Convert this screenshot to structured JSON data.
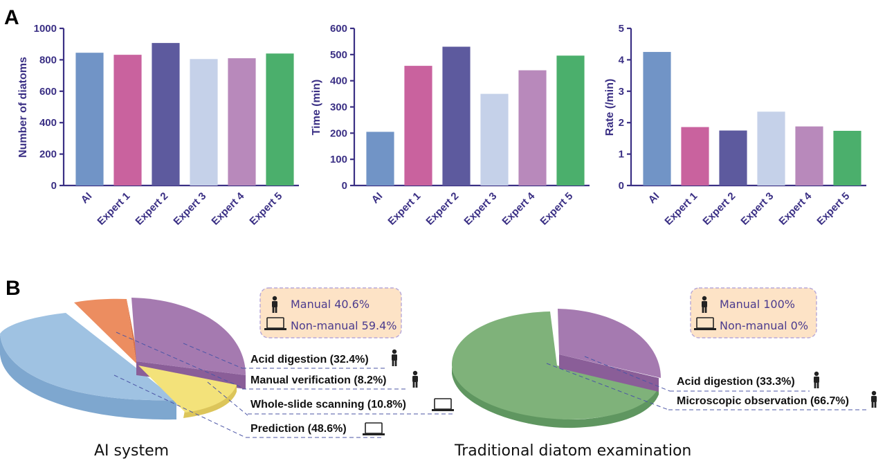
{
  "panels": {
    "a": "A",
    "b": "B"
  },
  "chart_data": [
    {
      "type": "bar",
      "categories": [
        "AI",
        "Expert 1",
        "Expert 2",
        "Expert 3",
        "Expert 4",
        "Expert 5"
      ],
      "values": [
        845,
        832,
        907,
        805,
        810,
        840
      ],
      "ylabel": "Number of diatoms",
      "ylim": [
        0,
        1000
      ],
      "yticks": [
        "0",
        "200",
        "400",
        "600",
        "800",
        "1000"
      ],
      "colors": [
        "#7194c6",
        "#c9629e",
        "#5d5a9e",
        "#c5d1e9",
        "#b889bb",
        "#4baf6c"
      ]
    },
    {
      "type": "bar",
      "categories": [
        "AI",
        "Expert 1",
        "Expert 2",
        "Expert 3",
        "Expert 4",
        "Expert 5"
      ],
      "values": [
        205,
        457,
        530,
        350,
        440,
        496
      ],
      "ylabel": "Time (min)",
      "ylim": [
        0,
        600
      ],
      "yticks": [
        "0",
        "100",
        "200",
        "300",
        "400",
        "500",
        "600"
      ],
      "colors": [
        "#7194c6",
        "#c9629e",
        "#5d5a9e",
        "#c5d1e9",
        "#b889bb",
        "#4baf6c"
      ]
    },
    {
      "type": "bar",
      "categories": [
        "AI",
        "Expert 1",
        "Expert 2",
        "Expert 3",
        "Expert 4",
        "Expert 5"
      ],
      "values": [
        4.25,
        1.86,
        1.75,
        2.35,
        1.88,
        1.74
      ],
      "ylabel": "Rate (/min)",
      "ylim": [
        0,
        5
      ],
      "yticks": [
        "0",
        "1",
        "2",
        "3",
        "4",
        "5"
      ],
      "colors": [
        "#7194c6",
        "#c9629e",
        "#5d5a9e",
        "#c5d1e9",
        "#b889bb",
        "#4baf6c"
      ]
    },
    {
      "type": "pie",
      "title": "AI system",
      "slices": [
        {
          "label": "Acid digestion (32.4%)",
          "value": 32.4,
          "color": "#a57ab0",
          "icon": "person-icon"
        },
        {
          "label": "Manual verification (8.2%)",
          "value": 8.2,
          "color": "#ec8d60",
          "icon": "person-icon"
        },
        {
          "label": "Whole-slide scanning (10.8%)",
          "value": 10.8,
          "color": "#f3e27a",
          "icon": "laptop-icon"
        },
        {
          "label": "Prediction (48.6%)",
          "value": 48.6,
          "color": "#9fc2e2",
          "icon": "laptop-icon"
        }
      ],
      "summary": {
        "manual": "Manual 40.6%",
        "non_manual": "Non-manual 59.4%"
      }
    },
    {
      "type": "pie",
      "title": "Traditional diatom examination",
      "slices": [
        {
          "label": "Acid digestion (33.3%)",
          "value": 33.3,
          "color": "#a57ab0",
          "icon": "person-icon"
        },
        {
          "label": "Microscopic observation (66.7%)",
          "value": 66.7,
          "color": "#7fb27a",
          "icon": "person-icon"
        }
      ],
      "summary": {
        "manual": "Manual 100%",
        "non_manual": "Non-manual 0%"
      }
    }
  ],
  "colors": {
    "axis": "#3a2f84",
    "summary_box_fill": "#fde3c6",
    "summary_box_border": "#b6a7d8",
    "leader": "#4b55a6"
  }
}
